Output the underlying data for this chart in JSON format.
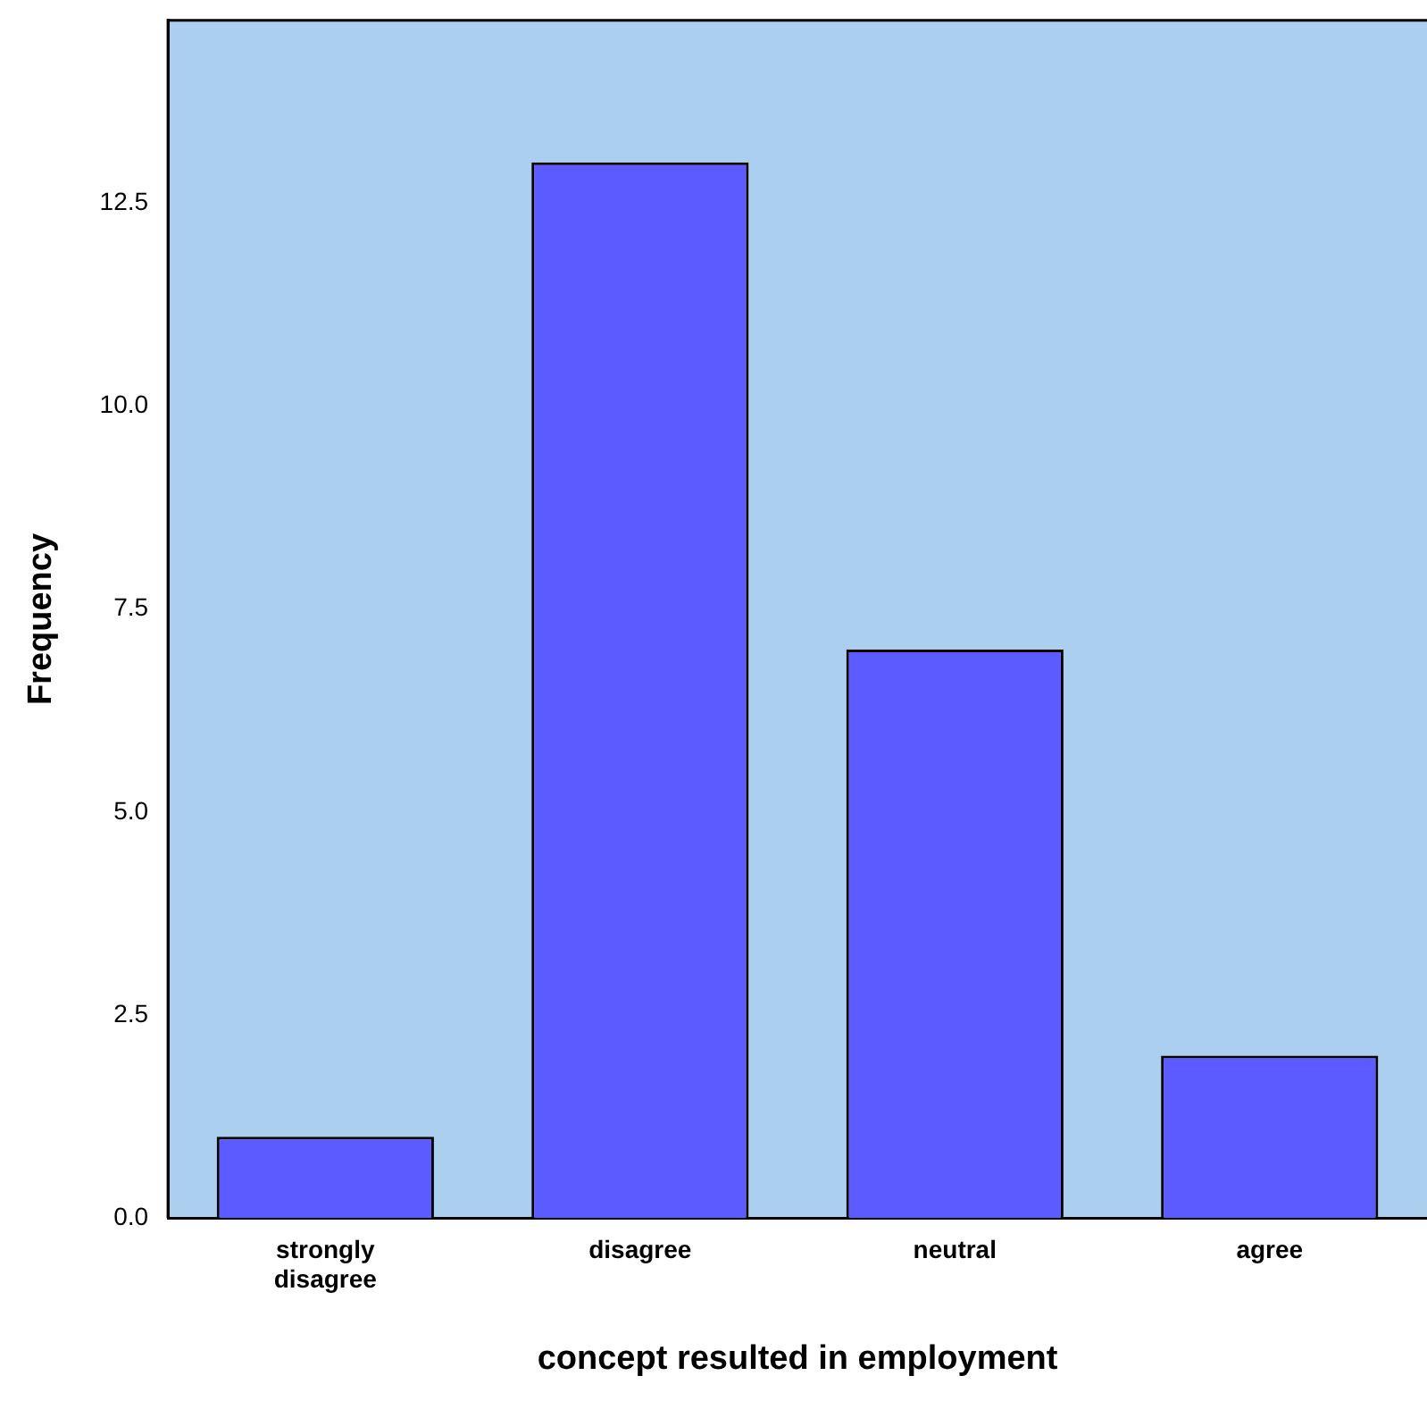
{
  "chart_data": {
    "type": "bar",
    "xlabel": "concept resulted in employment",
    "ylabel": "Frequency",
    "categories": [
      "strongly disagree",
      "disagree",
      "neutral",
      "agree"
    ],
    "values": [
      1,
      13,
      7,
      2
    ],
    "color": "#5b5bff",
    "ylim": [
      0,
      14.75
    ],
    "yticks": [
      {
        "value": 0,
        "label": "0.0"
      },
      {
        "value": 2.5,
        "label": "2.5"
      },
      {
        "value": 5,
        "label": "5.0"
      },
      {
        "value": 7.5,
        "label": "7.5"
      },
      {
        "value": 10,
        "label": "10.0"
      },
      12.5
    ],
    "grid": false,
    "legend": false
  }
}
